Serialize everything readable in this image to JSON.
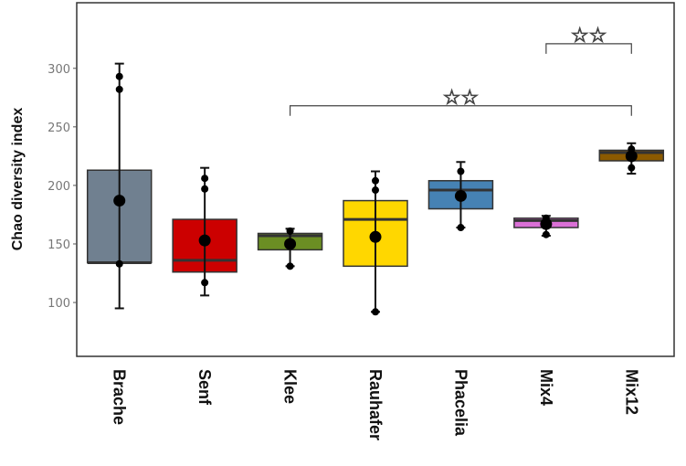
{
  "chart_data": {
    "type": "box",
    "title": "",
    "xlabel": "",
    "ylabel": "Chao diversity index",
    "ylim": [
      54,
      356
    ],
    "yticks": [
      100,
      150,
      200,
      250,
      300
    ],
    "grid": false,
    "categories": [
      "Brache",
      "Senf",
      "Klee",
      "Rauhafer",
      "Phacelia",
      "Mix4",
      "Mix12"
    ],
    "boxes": [
      {
        "name": "Brache",
        "color": "#708090",
        "q1": 134,
        "median": 134,
        "q3": 213,
        "mean": 187,
        "whisker_low": 95,
        "whisker_high": 304,
        "points": [
          293,
          282,
          133
        ]
      },
      {
        "name": "Senf",
        "color": "#CC0000",
        "q1": 126,
        "median": 136,
        "q3": 171,
        "mean": 153,
        "whisker_low": 106,
        "whisker_high": 215,
        "points": [
          206,
          197,
          117
        ]
      },
      {
        "name": "Klee",
        "color": "#6B8E23",
        "q1": 145,
        "median": 157,
        "q3": 159,
        "mean": 150,
        "whisker_low": 131,
        "whisker_high": 163,
        "points": [
          161,
          131
        ]
      },
      {
        "name": "Rauhafer",
        "color": "#FFD700",
        "q1": 131,
        "median": 171,
        "q3": 187,
        "mean": 156,
        "whisker_low": 92,
        "whisker_high": 212,
        "points": [
          204,
          196,
          92
        ]
      },
      {
        "name": "Phacelia",
        "color": "#4682B4",
        "q1": 180,
        "median": 196,
        "q3": 204,
        "mean": 191,
        "whisker_low": 164,
        "whisker_high": 220,
        "points": [
          212,
          164
        ]
      },
      {
        "name": "Mix4",
        "color": "#DA70D6",
        "q1": 164,
        "median": 170,
        "q3": 172,
        "mean": 167,
        "whisker_low": 157,
        "whisker_high": 174,
        "points": [
          172,
          158
        ]
      },
      {
        "name": "Mix12",
        "color": "#8B5A00",
        "q1": 221,
        "median": 228,
        "q3": 230,
        "mean": 225,
        "whisker_low": 210,
        "whisker_high": 236,
        "points": [
          231,
          215
        ]
      }
    ],
    "annotations": [
      {
        "from": "Klee",
        "to": "Mix12",
        "y": 268,
        "label": "☆☆"
      },
      {
        "from": "Mix4",
        "to": "Mix12",
        "y": 321,
        "label": "☆☆"
      }
    ]
  }
}
